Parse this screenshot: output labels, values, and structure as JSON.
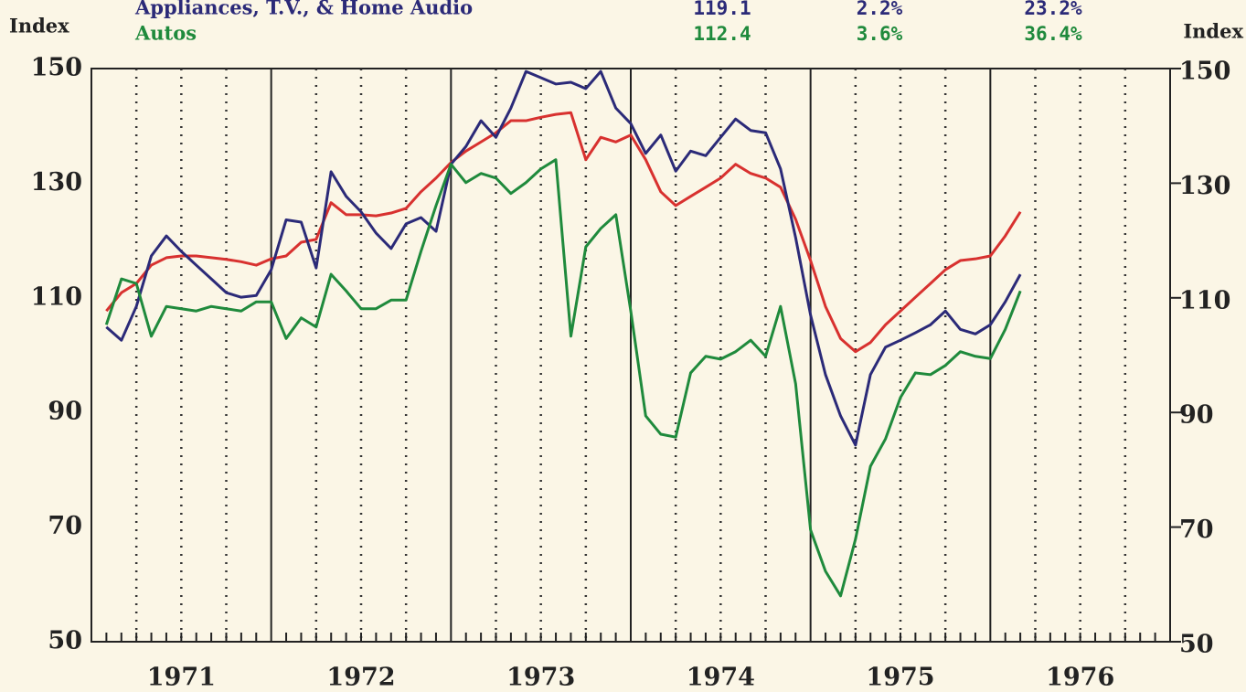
{
  "chart_data": {
    "type": "line",
    "y_label_left": "Index",
    "y_label_right": "Index",
    "xlim": [
      1971,
      1977
    ],
    "xticks": [
      {
        "value": 1971.5,
        "label": "1971"
      },
      {
        "value": 1972.5,
        "label": "1972"
      },
      {
        "value": 1973.5,
        "label": "1973"
      },
      {
        "value": 1974.5,
        "label": "1974"
      },
      {
        "value": 1975.5,
        "label": "1975"
      },
      {
        "value": 1976.5,
        "label": "1976"
      }
    ],
    "ylim": [
      50,
      150
    ],
    "yticks": [
      50,
      70,
      90,
      110,
      130,
      150
    ],
    "x": [
      1971.083,
      1971.167,
      1971.25,
      1971.333,
      1971.417,
      1971.5,
      1971.583,
      1971.667,
      1971.75,
      1971.833,
      1971.917,
      1972,
      1972.083,
      1972.167,
      1972.25,
      1972.333,
      1972.417,
      1972.5,
      1972.583,
      1972.667,
      1972.75,
      1972.833,
      1972.917,
      1973,
      1973.083,
      1973.167,
      1973.25,
      1973.333,
      1973.417,
      1973.5,
      1973.583,
      1973.667,
      1973.75,
      1973.833,
      1973.917,
      1974,
      1974.083,
      1974.167,
      1974.25,
      1974.333,
      1974.417,
      1974.5,
      1974.583,
      1974.667,
      1974.75,
      1974.833,
      1974.917,
      1975,
      1975.083,
      1975.167,
      1975.25,
      1975.333,
      1975.417,
      1975.5,
      1975.583,
      1975.667,
      1975.75,
      1975.833,
      1975.917,
      1976,
      1976.083,
      1976.167
    ],
    "series": [
      {
        "color": "#d8312f",
        "values": [
          107.7,
          110.9,
          112.5,
          115.7,
          117.0,
          117.3,
          117.3,
          117.0,
          116.7,
          116.3,
          115.7,
          116.8,
          117.3,
          119.7,
          120.2,
          126.6,
          124.5,
          124.5,
          124.3,
          124.8,
          125.6,
          128.5,
          130.9,
          133.6,
          135.6,
          137.2,
          138.8,
          140.9,
          140.9,
          141.5,
          142.0,
          142.3,
          134.1,
          138.0,
          137.2,
          138.4,
          134.1,
          128.5,
          126.1,
          127.7,
          129.3,
          130.9,
          133.3,
          131.7,
          130.9,
          129.3,
          123.7,
          116.5,
          108.5,
          102.9,
          100.6,
          102.2,
          105.3,
          107.7,
          110.1,
          112.5,
          114.9,
          116.5,
          116.8,
          117.3,
          120.8,
          125.0
        ]
      },
      {
        "name": "Appliances, T.V., & Home Audio",
        "color": "#2b2a78",
        "stats": [
          "119.1",
          "2.2%",
          "23.2%"
        ],
        "values": [
          104.9,
          102.6,
          108.5,
          117.3,
          120.8,
          118.1,
          115.7,
          113.3,
          110.9,
          110.1,
          110.4,
          114.9,
          123.6,
          123.2,
          115.2,
          132.0,
          127.7,
          125.0,
          121.3,
          118.6,
          122.9,
          124.0,
          121.6,
          133.3,
          136.4,
          140.9,
          138.0,
          143.1,
          149.5,
          148.4,
          147.3,
          147.6,
          146.5,
          149.5,
          143.1,
          140.4,
          135.2,
          138.4,
          132.1,
          135.6,
          134.8,
          138.0,
          141.2,
          139.2,
          138.8,
          132.5,
          120.5,
          107.0,
          96.6,
          89.4,
          84.3,
          96.6,
          101.4,
          102.6,
          103.9,
          105.3,
          107.7,
          104.5,
          103.7,
          105.3,
          109.3,
          114.1
        ]
      },
      {
        "name": "Autos",
        "color": "#1f8a3c",
        "stats": [
          "112.4",
          "3.6%",
          "36.4%"
        ],
        "values": [
          105.3,
          113.3,
          112.5,
          103.3,
          108.5,
          108.1,
          107.7,
          108.5,
          108.1,
          107.7,
          109.3,
          109.3,
          102.9,
          106.5,
          104.9,
          114.1,
          111.2,
          108.1,
          108.1,
          109.6,
          109.6,
          118.1,
          126.1,
          133.3,
          130.1,
          131.7,
          130.9,
          128.2,
          130.1,
          132.5,
          134.1,
          103.3,
          118.9,
          122.1,
          124.5,
          107.7,
          89.4,
          86.2,
          85.7,
          96.9,
          99.8,
          99.3,
          100.6,
          102.6,
          99.8,
          108.5,
          95.0,
          69.5,
          62.3,
          58.0,
          67.9,
          80.6,
          85.4,
          92.6,
          96.9,
          96.6,
          98.2,
          100.6,
          99.8,
          99.4,
          104.5,
          111.2
        ]
      }
    ]
  }
}
